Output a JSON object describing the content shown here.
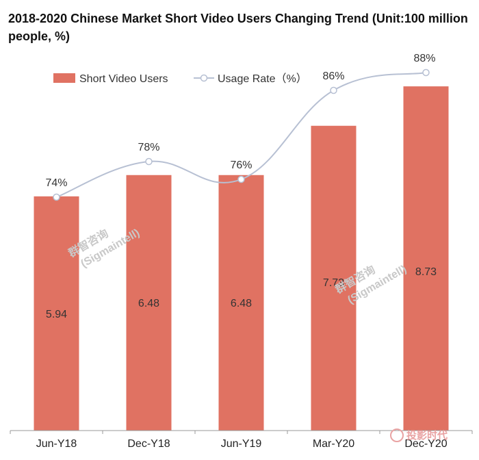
{
  "chart_data": {
    "type": "bar",
    "title": "2018-2020 Chinese Market Short Video Users Changing Trend (Unit:100 million people, %)",
    "categories": [
      "Jun-Y18",
      "Dec-Y18",
      "Jun-Y19",
      "Mar-Y20",
      "Dec-Y20"
    ],
    "series": [
      {
        "name": "Short Video Users",
        "type": "bar",
        "values": [
          5.94,
          6.48,
          6.48,
          7.73,
          8.73
        ],
        "labels": [
          "5.94",
          "6.48",
          "6.48",
          "7.73",
          "8.73"
        ]
      },
      {
        "name": "Usage Rate（%）",
        "type": "line",
        "values": [
          74,
          78,
          76,
          86,
          88
        ],
        "labels": [
          "74%",
          "78%",
          "76%",
          "86%",
          "88%"
        ]
      }
    ],
    "ylim_users": [
      0,
      10
    ],
    "ylim_rate": [
      60,
      90
    ],
    "legend": "top-left",
    "colors": {
      "bar": "#e07262",
      "line": "#b7c0d3",
      "marker_fill": "#ffffff",
      "axis": "#999999"
    }
  },
  "watermarks": {
    "brand_cn": "群智咨询",
    "brand_en": "(Sigmaintell)",
    "corner_cn": "投影时代"
  }
}
